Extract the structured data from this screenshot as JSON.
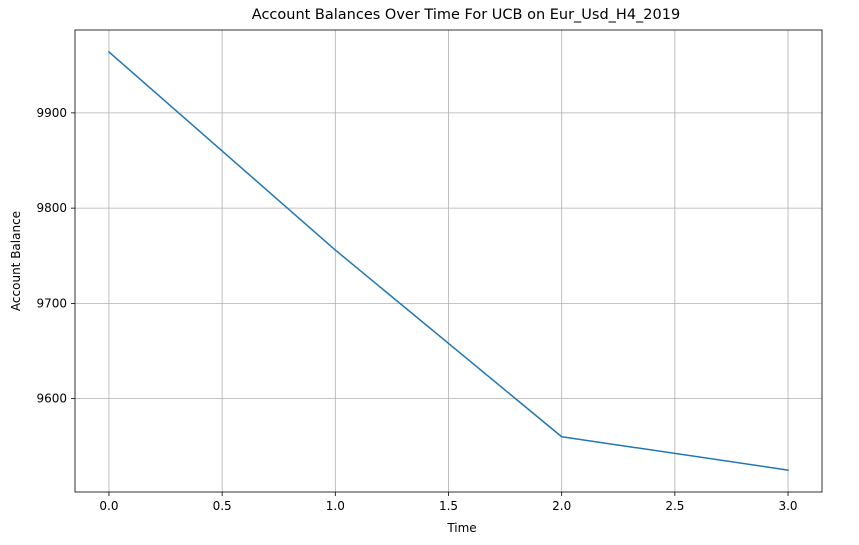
{
  "chart_data": {
    "type": "line",
    "title": "Account Balances Over Time For UCB on Eur_Usd_H4_2019",
    "xlabel": "Time",
    "ylabel": "Account Balance",
    "x": [
      0,
      1,
      2,
      3
    ],
    "series": [
      {
        "values": [
          9964,
          9756,
          9560,
          9525
        ],
        "color": "#1f77b4"
      }
    ],
    "xlim": [
      -0.15,
      3.15
    ],
    "ylim": [
      9502,
      9987
    ],
    "xticks": [
      0.0,
      0.5,
      1.0,
      1.5,
      2.0,
      2.5,
      3.0
    ],
    "xtick_labels": [
      "0.0",
      "0.5",
      "1.0",
      "1.5",
      "2.0",
      "2.5",
      "3.0"
    ],
    "yticks": [
      9600,
      9700,
      9800,
      9900
    ],
    "ytick_labels": [
      "9600",
      "9700",
      "9800",
      "9900"
    ],
    "grid": true,
    "legend": "none"
  }
}
